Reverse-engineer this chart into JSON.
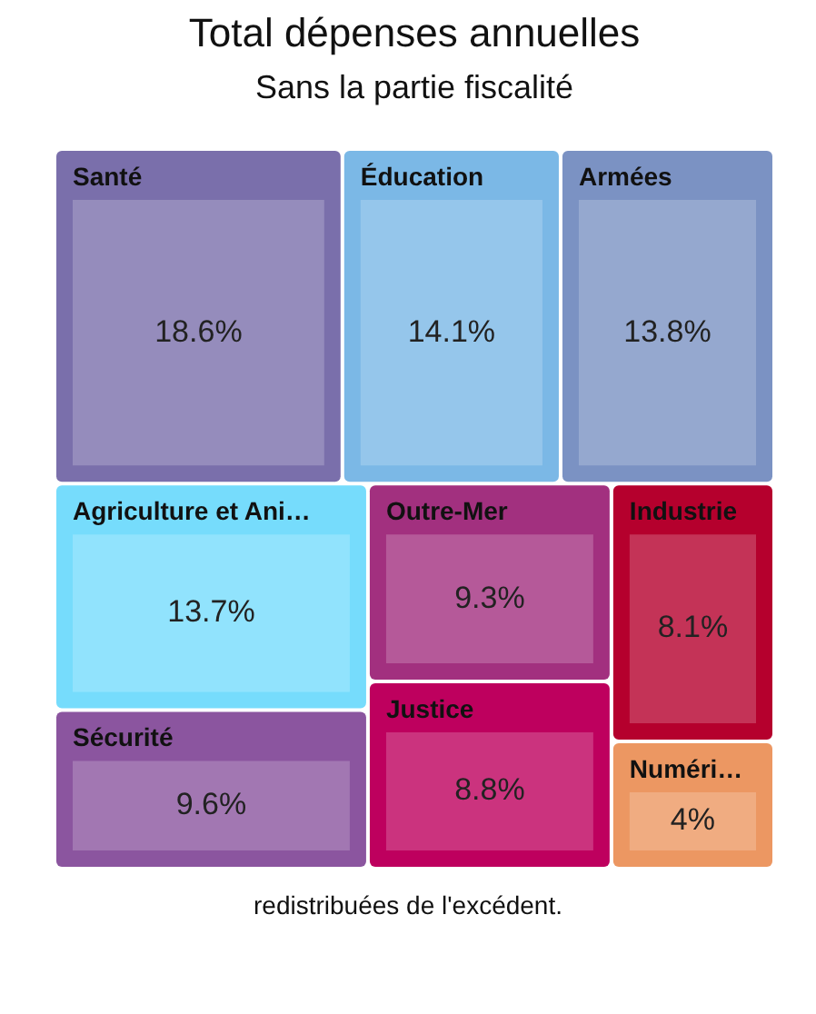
{
  "chart_data": {
    "type": "other",
    "title": "Total dépenses annuelles",
    "subtitle": "Sans la partie fiscalité",
    "categories": [
      "Santé",
      "Éducation",
      "Armées",
      "Agriculture et Ani…",
      "Sécurité",
      "Outre-Mer",
      "Justice",
      "Industrie",
      "Numéri…"
    ],
    "values": [
      18.6,
      14.1,
      13.8,
      13.7,
      9.6,
      9.3,
      8.8,
      8.1,
      4
    ],
    "colors": [
      "#7a6fab",
      "#7bb8e6",
      "#7b92c3",
      "#76dcfc",
      "#8b559f",
      "#a2307f",
      "#be005e",
      "#b5002d",
      "#ec9762"
    ],
    "value_labels": [
      "18.6%",
      "14.1%",
      "13.8%",
      "13.7%",
      "9.6%",
      "9.3%",
      "8.8%",
      "8.1%",
      "4%"
    ],
    "annotations": [
      "redistribuées de l'excédent."
    ]
  }
}
